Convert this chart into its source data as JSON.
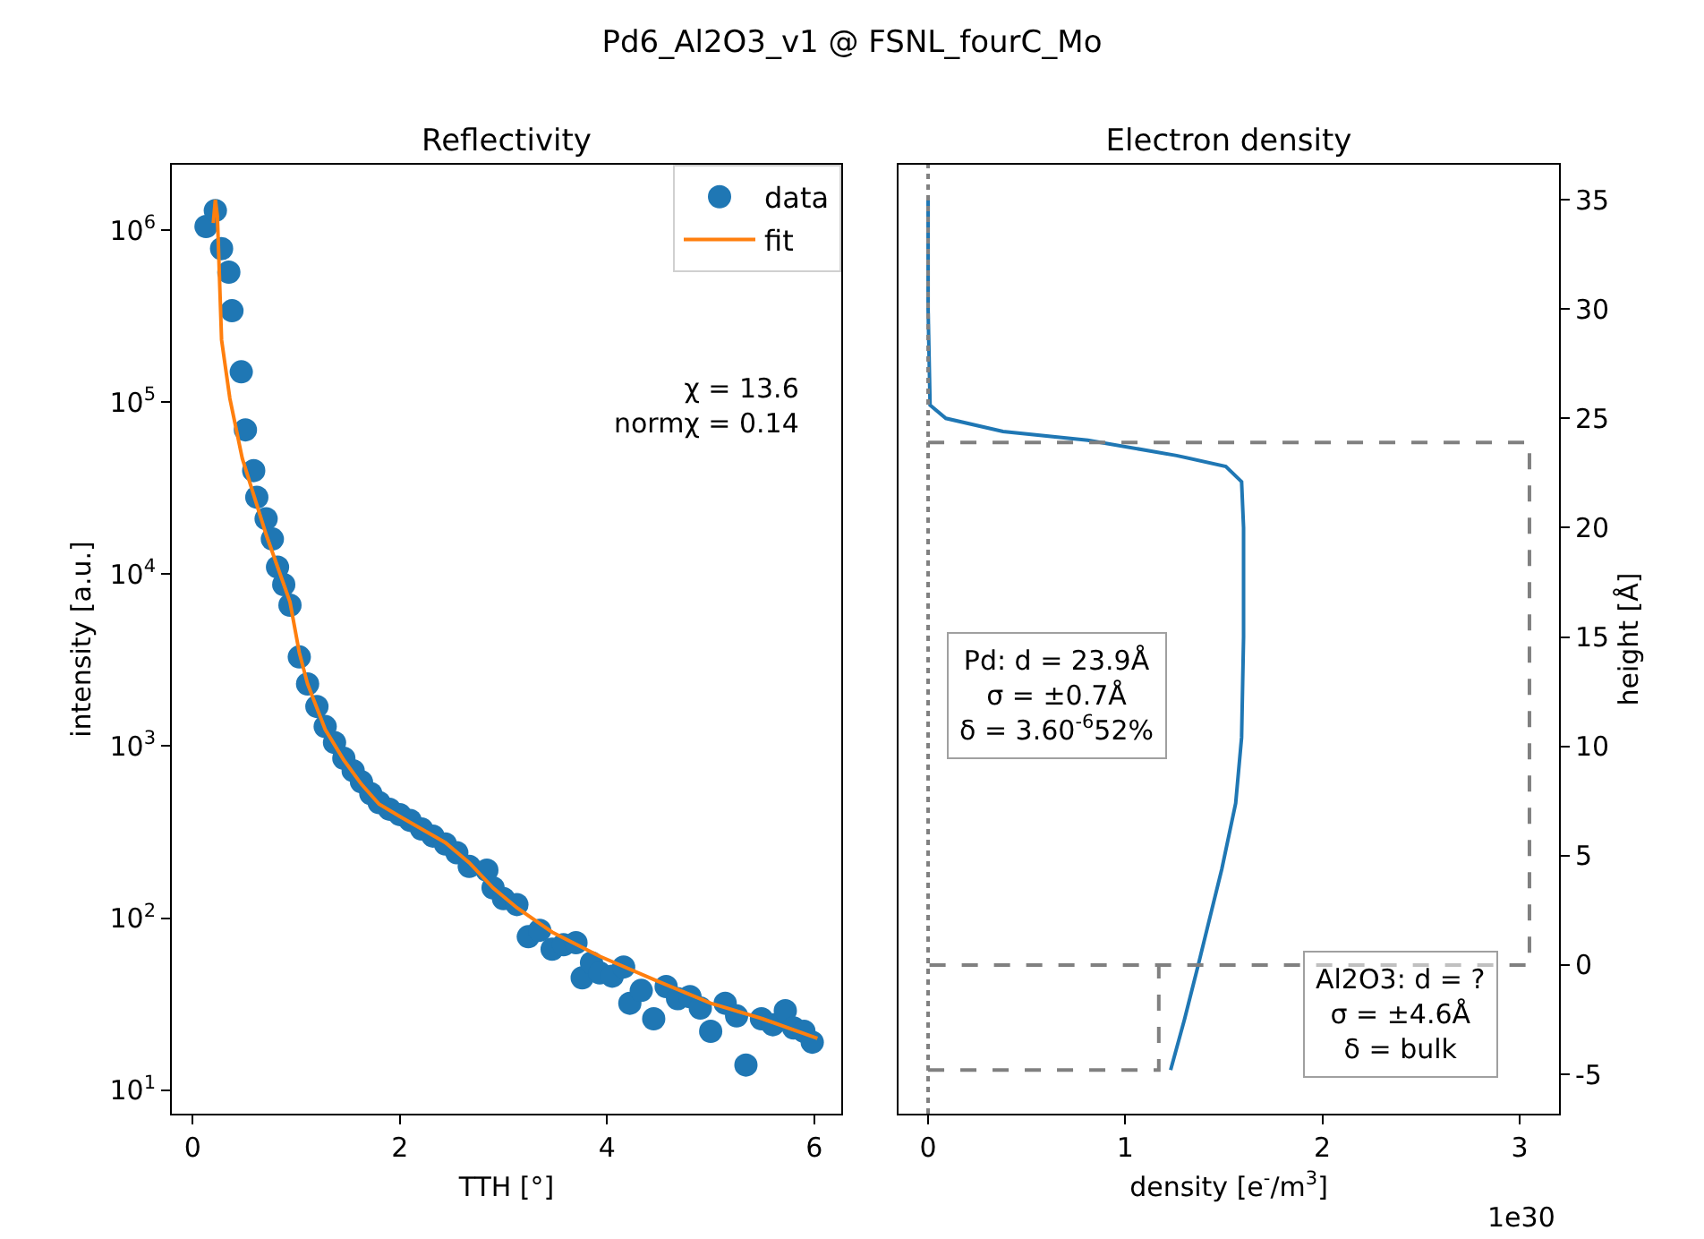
{
  "chart_data": [
    {
      "type": "scatter",
      "title": "Reflectivity",
      "xlabel": "TTH [°]",
      "ylabel": "intensity [a.u.]",
      "log": "y",
      "legend": "top right",
      "annotations": [
        "Pd6_Al2O3_v1 @ FSNL_fourC_Mo",
        "χ = 13.6\nnormχ = 0.14"
      ],
      "xlim": [
        -0.2,
        6.26
      ],
      "xticks": [
        0,
        2,
        4,
        6
      ],
      "ylim": [
        7.3,
        2400000
      ],
      "yticks": [
        {
          "value": 10,
          "label": "10$^{1}$"
        },
        {
          "value": 100,
          "label": "10$^{2}$"
        },
        {
          "value": 1000,
          "label": "10$^{3}$"
        },
        {
          "value": 10000,
          "label": "10$^{4}$"
        },
        {
          "value": 100000,
          "label": "10$^{5}$"
        },
        {
          "value": 1000000,
          "label": "10$^{6}$"
        }
      ],
      "series": [
        {
          "name": "data",
          "marker": "circle",
          "color": "#1f77b4",
          "x": [
            0.13,
            0.22,
            0.28,
            0.35,
            0.38,
            0.47,
            0.51,
            0.59,
            0.62,
            0.71,
            0.77,
            0.82,
            0.88,
            0.94,
            1.03,
            1.11,
            1.2,
            1.28,
            1.37,
            1.46,
            1.55,
            1.63,
            1.72,
            1.8,
            1.9,
            2.0,
            2.1,
            2.21,
            2.32,
            2.44,
            2.55,
            2.67,
            2.84,
            2.9,
            3.0,
            3.13,
            3.24,
            3.35,
            3.47,
            3.58,
            3.7,
            3.76,
            3.85,
            3.93,
            4.05,
            4.16,
            4.22,
            4.33,
            4.45,
            4.57,
            4.68,
            4.8,
            4.9,
            5.0,
            5.14,
            5.25,
            5.34,
            5.49,
            5.6,
            5.72,
            5.8,
            5.9,
            5.98
          ],
          "values": [
            1050000,
            1300000,
            780000,
            570000,
            340000,
            150000,
            69000,
            40000,
            28000,
            21000,
            16000,
            11000,
            8700,
            6600,
            3300,
            2300,
            1700,
            1300,
            1050,
            850,
            720,
            620,
            530,
            470,
            430,
            400,
            370,
            330,
            300,
            270,
            240,
            200,
            190,
            150,
            130,
            120,
            78,
            85,
            66,
            70,
            72,
            45,
            55,
            48,
            46,
            52,
            32,
            38,
            26,
            40,
            34,
            35,
            30,
            22,
            32,
            27,
            14,
            26,
            24,
            29,
            23,
            22,
            19
          ]
        },
        {
          "name": "fit",
          "type": "line",
          "color": "#ff7f0e",
          "x": [
            0.2,
            0.22,
            0.24,
            0.28,
            0.36,
            0.48,
            0.71,
            0.94,
            1.03,
            1.11,
            1.28,
            1.46,
            1.63,
            1.8,
            2.0,
            2.21,
            2.44,
            2.67,
            2.9,
            3.13,
            3.47,
            3.93,
            4.45,
            5.0,
            5.5,
            6.03
          ],
          "values": [
            1100000,
            1500000,
            1200000,
            230000,
            105000,
            47000,
            17000,
            6900,
            3500,
            2300,
            1250,
            830,
            600,
            460,
            390,
            330,
            275,
            210,
            150,
            115,
            83,
            60,
            44,
            32,
            26,
            20
          ]
        }
      ]
    },
    {
      "type": "line",
      "title": "Electron density",
      "xlabel": "density [e$^{-}$/m$^{3}$]",
      "ylabel": "height [Å]",
      "annotations": [
        "Pd: d = 23.9Å\nσ = ±0.7Å\nδ = 3.60$^{-6}$52%",
        "Al2O3: d = ?\nσ = ±4.6Å\nδ = bulk",
        "1e30"
      ],
      "xlim": [
        -0.15,
        3.2
      ],
      "xticks": [
        0,
        1,
        2,
        3
      ],
      "ylim": [
        -6.8,
        36.6
      ],
      "yticks": [
        -5,
        0,
        5,
        10,
        15,
        20,
        25,
        30,
        35
      ],
      "ref_lines": [
        {
          "axis": "x",
          "value": 0,
          "color": "#808080",
          "line_style": "dotted"
        }
      ],
      "series": [
        {
          "color": "#1f77b4",
          "x": [
            0,
            0,
            0.01,
            0.09,
            0.38,
            0.81,
            1.26,
            1.51,
            1.59,
            1.6,
            1.6,
            1.59,
            1.56,
            1.49,
            1.37,
            1.3,
            1.23
          ],
          "values": [
            35,
            30,
            25.6,
            25.0,
            24.4,
            24.0,
            23.3,
            22.8,
            22.1,
            20,
            15,
            10.4,
            7.4,
            4.4,
            0,
            -2.5,
            -4.8
          ]
        },
        {
          "color": "#808080",
          "line_style": "dashed",
          "x": [
            0,
            3.05,
            3.05,
            0
          ],
          "values": [
            23.9,
            23.9,
            0,
            0
          ]
        },
        {
          "color": "#808080",
          "line_style": "dashed",
          "x": [
            0,
            1.17,
            1.17
          ],
          "values": [
            -4.8,
            -4.8,
            0
          ]
        }
      ]
    }
  ]
}
